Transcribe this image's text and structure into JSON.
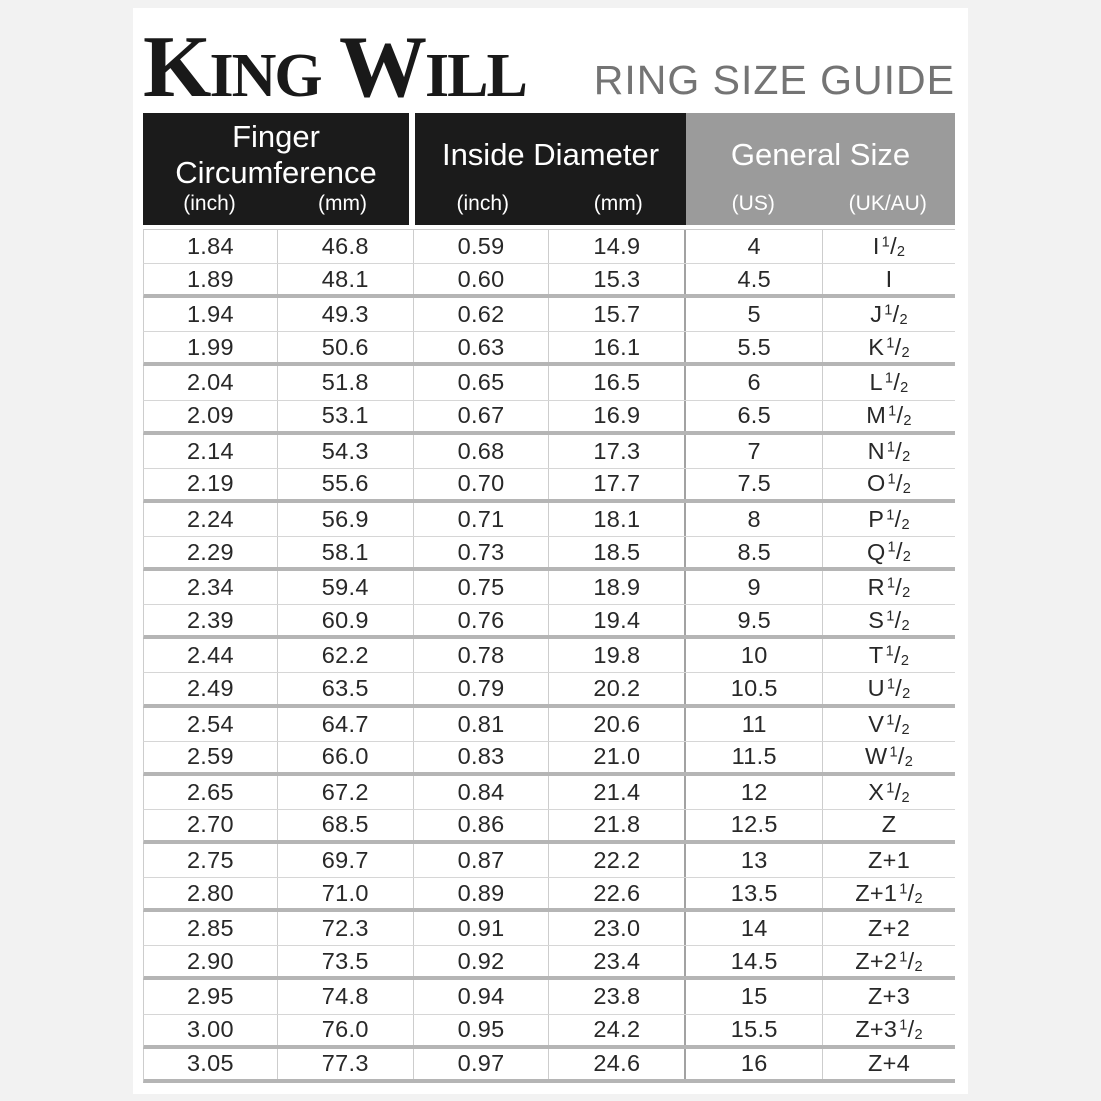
{
  "header": {
    "brand": "King Will",
    "title": "RING SIZE GUIDE"
  },
  "colors": {
    "page_background": "#f2f2f2",
    "card_background": "#ffffff",
    "header_black": "#1b1b1b",
    "header_gray": "#9b9b9b",
    "title_text": "#747474",
    "body_text": "#282828",
    "thin_line": "#d6d6d6",
    "thick_line": "#b5b5b5"
  },
  "chart_data": {
    "type": "table",
    "title": "RING SIZE GUIDE",
    "column_groups": {
      "finger": {
        "line1": "Finger",
        "line2": "Circumference",
        "sub1": "(inch)",
        "sub2": "(mm)"
      },
      "inside": {
        "line1": "Inside Diameter",
        "sub1": "(inch)",
        "sub2": "(mm)"
      },
      "general": {
        "line1": "General Size",
        "sub1": "(US)",
        "sub2": "(UK/AU)"
      }
    },
    "columns": [
      "Finger Circumference (inch)",
      "Finger Circumference (mm)",
      "Inside Diameter (inch)",
      "Inside Diameter (mm)",
      "General Size (US)",
      "General Size (UK/AU)"
    ],
    "rows": [
      [
        "1.84",
        "46.8",
        "0.59",
        "14.9",
        "4",
        "I ½"
      ],
      [
        "1.89",
        "48.1",
        "0.60",
        "15.3",
        "4.5",
        "I"
      ],
      [
        "1.94",
        "49.3",
        "0.62",
        "15.7",
        "5",
        "J ½"
      ],
      [
        "1.99",
        "50.6",
        "0.63",
        "16.1",
        "5.5",
        "K ½"
      ],
      [
        "2.04",
        "51.8",
        "0.65",
        "16.5",
        "6",
        "L ½"
      ],
      [
        "2.09",
        "53.1",
        "0.67",
        "16.9",
        "6.5",
        "M ½"
      ],
      [
        "2.14",
        "54.3",
        "0.68",
        "17.3",
        "7",
        "N ½"
      ],
      [
        "2.19",
        "55.6",
        "0.70",
        "17.7",
        "7.5",
        "O ½"
      ],
      [
        "2.24",
        "56.9",
        "0.71",
        "18.1",
        "8",
        "P ½"
      ],
      [
        "2.29",
        "58.1",
        "0.73",
        "18.5",
        "8.5",
        "Q ½"
      ],
      [
        "2.34",
        "59.4",
        "0.75",
        "18.9",
        "9",
        "R ½"
      ],
      [
        "2.39",
        "60.9",
        "0.76",
        "19.4",
        "9.5",
        "S ½"
      ],
      [
        "2.44",
        "62.2",
        "0.78",
        "19.8",
        "10",
        "T ½"
      ],
      [
        "2.49",
        "63.5",
        "0.79",
        "20.2",
        "10.5",
        "U ½"
      ],
      [
        "2.54",
        "64.7",
        "0.81",
        "20.6",
        "11",
        "V ½"
      ],
      [
        "2.59",
        "66.0",
        "0.83",
        "21.0",
        "11.5",
        "W ½"
      ],
      [
        "2.65",
        "67.2",
        "0.84",
        "21.4",
        "12",
        "X ½"
      ],
      [
        "2.70",
        "68.5",
        "0.86",
        "21.8",
        "12.5",
        "Z"
      ],
      [
        "2.75",
        "69.7",
        "0.87",
        "22.2",
        "13",
        "Z+1"
      ],
      [
        "2.80",
        "71.0",
        "0.89",
        "22.6",
        "13.5",
        "Z+1½"
      ],
      [
        "2.85",
        "72.3",
        "0.91",
        "23.0",
        "14",
        "Z+2"
      ],
      [
        "2.90",
        "73.5",
        "0.92",
        "23.4",
        "14.5",
        "Z+2½"
      ],
      [
        "2.95",
        "74.8",
        "0.94",
        "23.8",
        "15",
        "Z+3"
      ],
      [
        "3.00",
        "76.0",
        "0.95",
        "24.2",
        "15.5",
        "Z+3½"
      ],
      [
        "3.05",
        "77.3",
        "0.97",
        "24.6",
        "16",
        "Z+4"
      ]
    ]
  }
}
